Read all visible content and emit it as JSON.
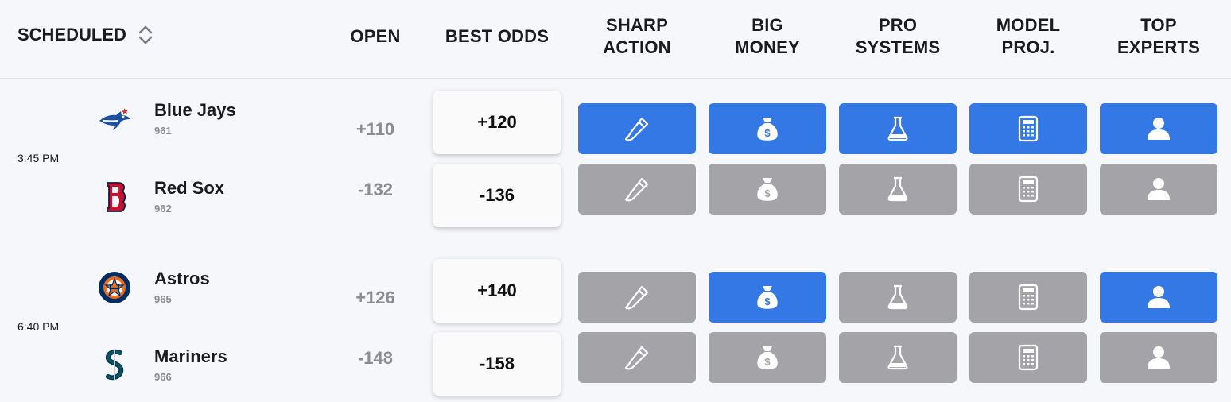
{
  "header": {
    "scheduled": "SCHEDULED",
    "open": "OPEN",
    "best_odds": "BEST ODDS",
    "sharp_action": [
      "SHARP",
      "ACTION"
    ],
    "big_money": [
      "BIG",
      "MONEY"
    ],
    "pro_systems": [
      "PRO",
      "SYSTEMS"
    ],
    "model_proj": [
      "MODEL",
      "PROJ."
    ],
    "top_experts": [
      "TOP",
      "EXPERTS"
    ]
  },
  "colors": {
    "active": "#3478e6",
    "inactive": "#a4a4a8"
  },
  "games": [
    {
      "time": "3:45 PM",
      "teams": [
        {
          "name": "Blue Jays",
          "number": "961",
          "open": "+110",
          "best_odds": "+120",
          "signals": {
            "sharp_action": true,
            "big_money": true,
            "pro_systems": true,
            "model_proj": true,
            "top_experts": true
          }
        },
        {
          "name": "Red Sox",
          "number": "962",
          "open": "-132",
          "best_odds": "-136",
          "signals": {
            "sharp_action": false,
            "big_money": false,
            "pro_systems": false,
            "model_proj": false,
            "top_experts": false
          }
        }
      ]
    },
    {
      "time": "6:40 PM",
      "teams": [
        {
          "name": "Astros",
          "number": "965",
          "open": "+126",
          "best_odds": "+140",
          "signals": {
            "sharp_action": false,
            "big_money": true,
            "pro_systems": false,
            "model_proj": false,
            "top_experts": true
          }
        },
        {
          "name": "Mariners",
          "number": "966",
          "open": "-148",
          "best_odds": "-158",
          "signals": {
            "sharp_action": false,
            "big_money": false,
            "pro_systems": false,
            "model_proj": false,
            "top_experts": false
          }
        }
      ]
    }
  ]
}
